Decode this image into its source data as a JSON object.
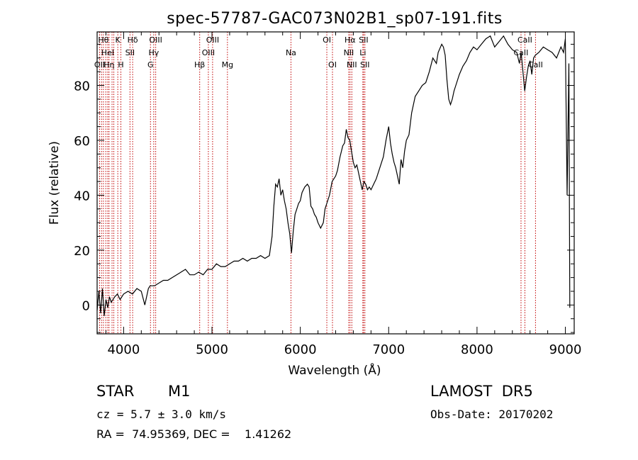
{
  "chart_data": {
    "type": "line",
    "title": "spec-57787-GAC073N02B1_sp07-191.fits",
    "xlabel": "Wavelength (Å)",
    "ylabel": "Flux (relative)",
    "xlim": [
      3700,
      9100
    ],
    "ylim": [
      -10.5,
      99.5
    ],
    "xticks": [
      4000,
      5000,
      6000,
      7000,
      8000,
      9000
    ],
    "yticks": [
      0,
      20,
      40,
      60,
      80
    ],
    "grid": false,
    "series": [
      {
        "color": "#000000",
        "x": [
          3700,
          3720,
          3740,
          3760,
          3780,
          3800,
          3820,
          3840,
          3860,
          3880,
          3900,
          3930,
          3960,
          4000,
          4050,
          4100,
          4150,
          4200,
          4240,
          4260,
          4280,
          4300,
          4350,
          4400,
          4450,
          4500,
          4550,
          4600,
          4650,
          4700,
          4750,
          4800,
          4850,
          4900,
          4950,
          5000,
          5050,
          5100,
          5150,
          5200,
          5250,
          5300,
          5350,
          5400,
          5450,
          5500,
          5550,
          5600,
          5650,
          5680,
          5700,
          5720,
          5740,
          5760,
          5780,
          5800,
          5820,
          5840,
          5860,
          5880,
          5900,
          5920,
          5940,
          5960,
          5980,
          6000,
          6020,
          6050,
          6080,
          6100,
          6120,
          6140,
          6160,
          6180,
          6200,
          6230,
          6260,
          6280,
          6300,
          6330,
          6360,
          6400,
          6420,
          6450,
          6480,
          6500,
          6520,
          6540,
          6560,
          6580,
          6600,
          6620,
          6640,
          6660,
          6680,
          6700,
          6720,
          6740,
          6760,
          6780,
          6800,
          6830,
          6860,
          6900,
          6940,
          6970,
          7000,
          7020,
          7040,
          7060,
          7080,
          7100,
          7120,
          7140,
          7160,
          7180,
          7200,
          7230,
          7260,
          7300,
          7340,
          7380,
          7420,
          7460,
          7500,
          7540,
          7560,
          7600,
          7620,
          7640,
          7660,
          7680,
          7700,
          7720,
          7740,
          7760,
          7800,
          7840,
          7880,
          7920,
          7960,
          8000,
          8050,
          8100,
          8150,
          8200,
          8250,
          8300,
          8350,
          8400,
          8450,
          8480,
          8500,
          8520,
          8540,
          8560,
          8580,
          8600,
          8620,
          8640,
          8660,
          8700,
          8750,
          8800,
          8850,
          8900,
          8950,
          8980,
          9000,
          9020,
          9040,
          9050
        ],
        "y": [
          -2,
          5,
          -3,
          6,
          -4,
          2,
          -1,
          3,
          1,
          2,
          3,
          4,
          2,
          4,
          5,
          4,
          6,
          5,
          0,
          3,
          6,
          7,
          7,
          8,
          9,
          9,
          10,
          11,
          12,
          13,
          11,
          11,
          12,
          11,
          13,
          13,
          15,
          14,
          14,
          15,
          16,
          16,
          17,
          16,
          17,
          17,
          18,
          17,
          18,
          25,
          36,
          44,
          43,
          46,
          40,
          42,
          38,
          35,
          30,
          26,
          19,
          27,
          33,
          35,
          37,
          38,
          41,
          43,
          44,
          43,
          36,
          35,
          33,
          32,
          30,
          28,
          30,
          35,
          37,
          40,
          45,
          47,
          49,
          54,
          58,
          59,
          64,
          61,
          60,
          56,
          52,
          50,
          51,
          48,
          45,
          42,
          45,
          44,
          42,
          43,
          42,
          44,
          46,
          50,
          54,
          60,
          65,
          59,
          55,
          52,
          50,
          47,
          44,
          53,
          50,
          56,
          60,
          62,
          70,
          76,
          78,
          80,
          81,
          85,
          90,
          88,
          92,
          95,
          94,
          91,
          82,
          75,
          73,
          75,
          78,
          80,
          84,
          87,
          89,
          92,
          94,
          93,
          95,
          97,
          98,
          94,
          96,
          98,
          95,
          93,
          92,
          88,
          92,
          85,
          78,
          83,
          87,
          89,
          84,
          90,
          91,
          92,
          94,
          93,
          92,
          90,
          94,
          92,
          97,
          40,
          88,
          -1
        ]
      }
    ],
    "line_markers": [
      {
        "x": 3728,
        "label": "OII",
        "row": 3
      },
      {
        "x": 3750,
        "label": "",
        "row": 0
      },
      {
        "x": 3771,
        "label": "Hθ",
        "row": 1
      },
      {
        "x": 3798,
        "label": "",
        "row": 0
      },
      {
        "x": 3820,
        "label": "HeI",
        "row": 2
      },
      {
        "x": 3835,
        "label": "Hη",
        "row": 3
      },
      {
        "x": 3869,
        "label": "",
        "row": 0
      },
      {
        "x": 3889,
        "label": "",
        "row": 0
      },
      {
        "x": 3934,
        "label": "K",
        "row": 1
      },
      {
        "x": 3969,
        "label": "H",
        "row": 3
      },
      {
        "x": 4072,
        "label": "SII",
        "row": 2
      },
      {
        "x": 4102,
        "label": "Hδ",
        "row": 1
      },
      {
        "x": 4304,
        "label": "G",
        "row": 3
      },
      {
        "x": 4341,
        "label": "Hγ",
        "row": 2
      },
      {
        "x": 4363,
        "label": "OIII",
        "row": 1
      },
      {
        "x": 4861,
        "label": "Hβ",
        "row": 3
      },
      {
        "x": 4959,
        "label": "OIII",
        "row": 2
      },
      {
        "x": 5007,
        "label": "OIII",
        "row": 1
      },
      {
        "x": 5175,
        "label": "Mg",
        "row": 3
      },
      {
        "x": 5894,
        "label": "Na",
        "row": 2
      },
      {
        "x": 6300,
        "label": "OI",
        "row": 1
      },
      {
        "x": 6364,
        "label": "OI",
        "row": 3
      },
      {
        "x": 6548,
        "label": "NII",
        "row": 2
      },
      {
        "x": 6563,
        "label": "Hα",
        "row": 1
      },
      {
        "x": 6583,
        "label": "NII",
        "row": 3
      },
      {
        "x": 6708,
        "label": "Li",
        "row": 2
      },
      {
        "x": 6716,
        "label": "SII",
        "row": 1
      },
      {
        "x": 6731,
        "label": "SII",
        "row": 3
      },
      {
        "x": 8498,
        "label": "CaII",
        "row": 2
      },
      {
        "x": 8542,
        "label": "CaII",
        "row": 1
      },
      {
        "x": 8662,
        "label": "CaII",
        "row": 3
      }
    ]
  },
  "footer": {
    "object_class": "STAR",
    "subclass": "M1",
    "survey": "LAMOST  DR5",
    "cz": "cz = 5.7 ± 3.0 km/s",
    "obs_date": "Obs-Date: 20170202",
    "coords": "RA =  74.95369, DEC =    1.41262"
  }
}
